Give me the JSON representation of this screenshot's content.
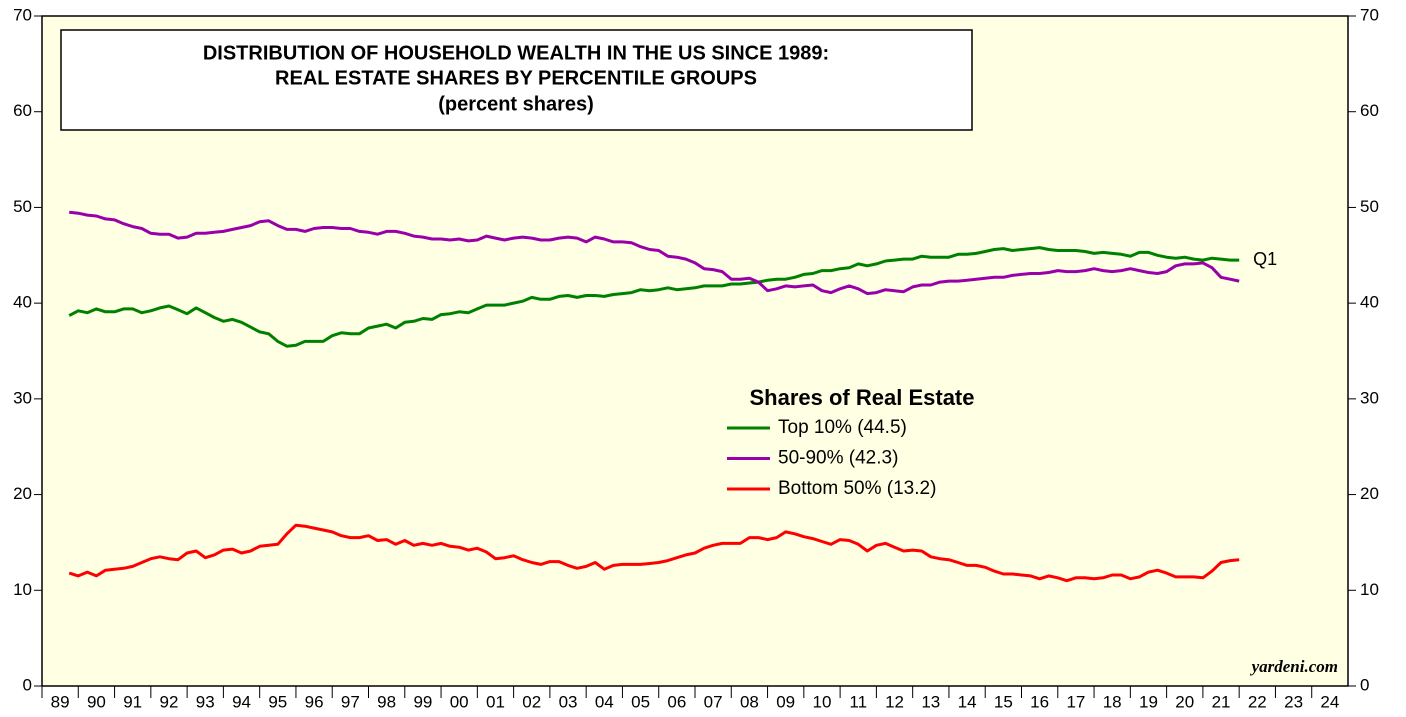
{
  "chart_data": {
    "type": "line",
    "title_lines": [
      "DISTRIBUTION OF HOUSEHOLD WEALTH IN THE US SINCE 1989:",
      "REAL ESTATE SHARES BY PERCENTILE GROUPS",
      "(percent shares)"
    ],
    "legend_title": "Shares of Real Estate",
    "annotation": "Q1",
    "source": "yardeni.com",
    "x": [
      1989.75,
      1990,
      1990.25,
      1990.5,
      1990.75,
      1991,
      1991.25,
      1991.5,
      1991.75,
      1992,
      1992.25,
      1992.5,
      1992.75,
      1993,
      1993.25,
      1993.5,
      1993.75,
      1994,
      1994.25,
      1994.5,
      1994.75,
      1995,
      1995.25,
      1995.5,
      1995.75,
      1996,
      1996.25,
      1996.5,
      1996.75,
      1997,
      1997.25,
      1997.5,
      1997.75,
      1998,
      1998.25,
      1998.5,
      1998.75,
      1999,
      1999.25,
      1999.5,
      1999.75,
      2000,
      2000.25,
      2000.5,
      2000.75,
      2001,
      2001.25,
      2001.5,
      2001.75,
      2002,
      2002.25,
      2002.5,
      2002.75,
      2003,
      2003.25,
      2003.5,
      2003.75,
      2004,
      2004.25,
      2004.5,
      2004.75,
      2005,
      2005.25,
      2005.5,
      2005.75,
      2006,
      2006.25,
      2006.5,
      2006.75,
      2007,
      2007.25,
      2007.5,
      2007.75,
      2008,
      2008.25,
      2008.5,
      2008.75,
      2009,
      2009.25,
      2009.5,
      2009.75,
      2010,
      2010.25,
      2010.5,
      2010.75,
      2011,
      2011.25,
      2011.5,
      2011.75,
      2012,
      2012.25,
      2012.5,
      2012.75,
      2013,
      2013.25,
      2013.5,
      2013.75,
      2014,
      2014.25,
      2014.5,
      2014.75,
      2015,
      2015.25,
      2015.5,
      2015.75,
      2016,
      2016.25,
      2016.5,
      2016.75,
      2017,
      2017.25,
      2017.5,
      2017.75,
      2018,
      2018.25,
      2018.5,
      2018.75,
      2019,
      2019.25,
      2019.5,
      2019.75,
      2020,
      2020.25,
      2020.5,
      2020.75,
      2021,
      2021.25,
      2021.5,
      2021.75,
      2022
    ],
    "series": [
      {
        "name": "Top 10% (44.5)",
        "color": "#008000",
        "values": [
          38.7,
          39.2,
          39.0,
          39.4,
          39.1,
          39.1,
          39.4,
          39.4,
          39.0,
          39.2,
          39.5,
          39.7,
          39.3,
          38.9,
          39.5,
          39.0,
          38.5,
          38.1,
          38.3,
          38.0,
          37.5,
          37.0,
          36.8,
          36.0,
          35.5,
          35.6,
          36.0,
          36.0,
          36.0,
          36.6,
          36.9,
          36.8,
          36.8,
          37.4,
          37.6,
          37.8,
          37.4,
          38.0,
          38.1,
          38.4,
          38.3,
          38.8,
          38.9,
          39.1,
          39.0,
          39.4,
          39.8,
          39.8,
          39.8,
          40.0,
          40.2,
          40.6,
          40.4,
          40.4,
          40.7,
          40.8,
          40.6,
          40.8,
          40.8,
          40.7,
          40.9,
          41.0,
          41.1,
          41.4,
          41.3,
          41.4,
          41.6,
          41.4,
          41.5,
          41.6,
          41.8,
          41.8,
          41.8,
          42.0,
          42.0,
          42.1,
          42.2,
          42.4,
          42.5,
          42.5,
          42.7,
          43.0,
          43.1,
          43.4,
          43.4,
          43.6,
          43.7,
          44.1,
          43.9,
          44.1,
          44.4,
          44.5,
          44.6,
          44.6,
          44.9,
          44.8,
          44.8,
          44.8,
          45.1,
          45.1,
          45.2,
          45.4,
          45.6,
          45.7,
          45.5,
          45.6,
          45.7,
          45.8,
          45.6,
          45.5,
          45.5,
          45.5,
          45.4,
          45.2,
          45.3,
          45.2,
          45.1,
          44.9,
          45.3,
          45.3,
          45.0,
          44.8,
          44.7,
          44.8,
          44.6,
          44.5,
          44.7,
          44.6,
          44.5,
          44.5
        ]
      },
      {
        "name": "50-90% (42.3)",
        "color": "#9900aa",
        "values": [
          49.5,
          49.4,
          49.2,
          49.1,
          48.8,
          48.7,
          48.3,
          48.0,
          47.8,
          47.3,
          47.2,
          47.2,
          46.8,
          46.9,
          47.3,
          47.3,
          47.4,
          47.5,
          47.7,
          47.9,
          48.1,
          48.5,
          48.6,
          48.1,
          47.7,
          47.7,
          47.5,
          47.8,
          47.9,
          47.9,
          47.8,
          47.8,
          47.5,
          47.4,
          47.2,
          47.5,
          47.5,
          47.3,
          47.0,
          46.9,
          46.7,
          46.7,
          46.6,
          46.7,
          46.5,
          46.6,
          47.0,
          46.8,
          46.6,
          46.8,
          46.9,
          46.8,
          46.6,
          46.6,
          46.8,
          46.9,
          46.8,
          46.4,
          46.9,
          46.7,
          46.4,
          46.4,
          46.3,
          45.9,
          45.6,
          45.5,
          44.9,
          44.8,
          44.6,
          44.2,
          43.6,
          43.5,
          43.3,
          42.5,
          42.5,
          42.6,
          42.2,
          41.3,
          41.5,
          41.8,
          41.7,
          41.8,
          41.9,
          41.3,
          41.1,
          41.5,
          41.8,
          41.5,
          41.0,
          41.1,
          41.4,
          41.3,
          41.2,
          41.7,
          41.9,
          41.9,
          42.2,
          42.3,
          42.3,
          42.4,
          42.5,
          42.6,
          42.7,
          42.7,
          42.9,
          43.0,
          43.1,
          43.1,
          43.2,
          43.4,
          43.3,
          43.3,
          43.4,
          43.6,
          43.4,
          43.3,
          43.4,
          43.6,
          43.4,
          43.2,
          43.1,
          43.3,
          43.9,
          44.1,
          44.1,
          44.2,
          43.7,
          42.7,
          42.5,
          42.3
        ]
      },
      {
        "name": "Bottom 50% (13.2)",
        "color": "#ff0000",
        "values": [
          11.8,
          11.5,
          11.9,
          11.5,
          12.1,
          12.2,
          12.3,
          12.5,
          12.9,
          13.3,
          13.5,
          13.3,
          13.2,
          13.9,
          14.1,
          13.4,
          13.7,
          14.2,
          14.3,
          13.9,
          14.1,
          14.6,
          14.7,
          14.8,
          15.9,
          16.8,
          16.7,
          16.5,
          16.3,
          16.1,
          15.7,
          15.5,
          15.5,
          15.7,
          15.2,
          15.3,
          14.8,
          15.2,
          14.7,
          14.9,
          14.7,
          14.9,
          14.6,
          14.5,
          14.2,
          14.4,
          14.0,
          13.3,
          13.4,
          13.6,
          13.2,
          12.9,
          12.7,
          13.0,
          13.0,
          12.6,
          12.3,
          12.5,
          12.9,
          12.2,
          12.6,
          12.7,
          12.7,
          12.7,
          12.8,
          12.9,
          13.1,
          13.4,
          13.7,
          13.9,
          14.4,
          14.7,
          14.9,
          14.9,
          14.9,
          15.5,
          15.5,
          15.3,
          15.5,
          16.1,
          15.9,
          15.6,
          15.4,
          15.1,
          14.8,
          15.3,
          15.2,
          14.8,
          14.1,
          14.7,
          14.9,
          14.5,
          14.1,
          14.2,
          14.1,
          13.5,
          13.3,
          13.2,
          12.9,
          12.6,
          12.6,
          12.4,
          12.0,
          11.7,
          11.7,
          11.6,
          11.5,
          11.2,
          11.5,
          11.3,
          11.0,
          11.3,
          11.3,
          11.2,
          11.3,
          11.6,
          11.6,
          11.2,
          11.4,
          11.9,
          12.1,
          11.8,
          11.4,
          11.4,
          11.4,
          11.3,
          12.0,
          12.9,
          13.1,
          13.2
        ]
      }
    ],
    "xlim": [
      1989,
      2025
    ],
    "xticks": [
      {
        "value": 1989,
        "label": "89"
      },
      {
        "value": 1990,
        "label": "90"
      },
      {
        "value": 1991,
        "label": "91"
      },
      {
        "value": 1992,
        "label": "92"
      },
      {
        "value": 1993,
        "label": "93"
      },
      {
        "value": 1994,
        "label": "94"
      },
      {
        "value": 1995,
        "label": "95"
      },
      {
        "value": 1996,
        "label": "96"
      },
      {
        "value": 1997,
        "label": "97"
      },
      {
        "value": 1998,
        "label": "98"
      },
      {
        "value": 1999,
        "label": "99"
      },
      {
        "value": 2000,
        "label": "00"
      },
      {
        "value": 2001,
        "label": "01"
      },
      {
        "value": 2002,
        "label": "02"
      },
      {
        "value": 2003,
        "label": "03"
      },
      {
        "value": 2004,
        "label": "04"
      },
      {
        "value": 2005,
        "label": "05"
      },
      {
        "value": 2006,
        "label": "06"
      },
      {
        "value": 2007,
        "label": "07"
      },
      {
        "value": 2008,
        "label": "08"
      },
      {
        "value": 2009,
        "label": "09"
      },
      {
        "value": 2010,
        "label": "10"
      },
      {
        "value": 2011,
        "label": "11"
      },
      {
        "value": 2012,
        "label": "12"
      },
      {
        "value": 2013,
        "label": "13"
      },
      {
        "value": 2014,
        "label": "14"
      },
      {
        "value": 2015,
        "label": "15"
      },
      {
        "value": 2016,
        "label": "16"
      },
      {
        "value": 2017,
        "label": "17"
      },
      {
        "value": 2018,
        "label": "18"
      },
      {
        "value": 2019,
        "label": "19"
      },
      {
        "value": 2020,
        "label": "20"
      },
      {
        "value": 2021,
        "label": "21"
      },
      {
        "value": 2022,
        "label": "22"
      },
      {
        "value": 2023,
        "label": "23"
      },
      {
        "value": 2024,
        "label": "24"
      }
    ],
    "ylim": [
      0,
      70
    ],
    "yticks": [
      0,
      10,
      20,
      30,
      40,
      50,
      60,
      70
    ],
    "y2lim": [
      0,
      70
    ],
    "y2ticks": [
      0,
      10,
      20,
      30,
      40,
      50,
      60,
      70
    ],
    "background": "#ffffe3"
  }
}
